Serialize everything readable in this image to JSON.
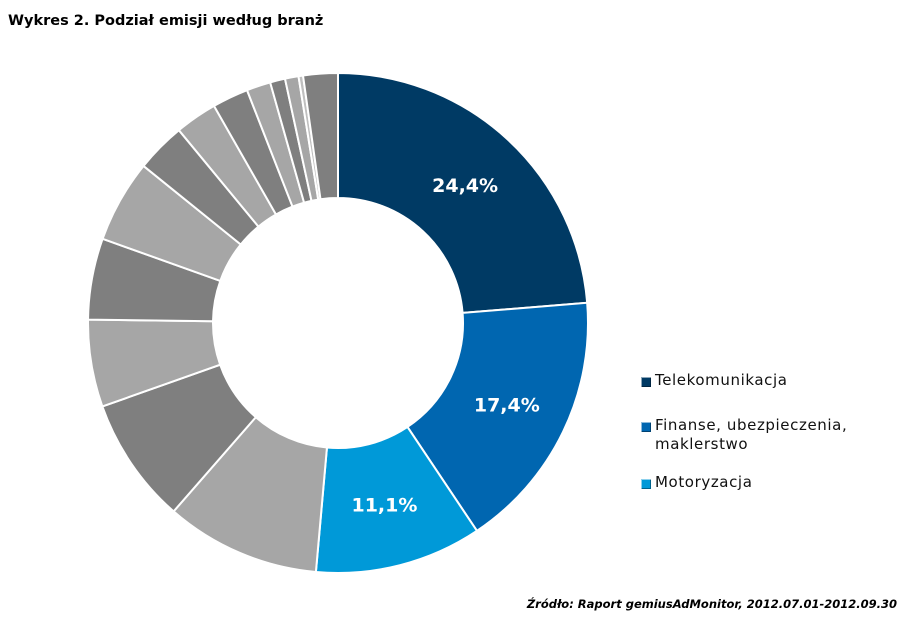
{
  "title": "Wykres 2. Podział emisji według branż",
  "source": "Źródło: Raport gemiusAdMonitor, 2012.07.01-2012.09.30",
  "legend": [
    {
      "label": "Telekomunikacja",
      "color": "#003a64"
    },
    {
      "label": "Finanse, ubezpieczenia, maklerstwo",
      "color": "#0066b0"
    },
    {
      "label": "Motoryzacja",
      "color": "#0099d8"
    }
  ],
  "chart_data": {
    "type": "donut",
    "title": "Wykres 2. Podział emisji według branż",
    "series": [
      {
        "name": "Telekomunikacja",
        "value": 24.4,
        "label": "24,4%",
        "color": "#003a64"
      },
      {
        "name": "Finanse, ubezpieczenia, maklerstwo",
        "value": 17.4,
        "label": "17,4%",
        "color": "#0066b0"
      },
      {
        "name": "Motoryzacja",
        "value": 11.1,
        "label": "11,1%",
        "color": "#0099d8"
      },
      {
        "name": "",
        "value": 10.3,
        "label": "",
        "color": "#a6a6a6"
      },
      {
        "name": "",
        "value": 8.4,
        "label": "",
        "color": "#7f7f7f"
      },
      {
        "name": "",
        "value": 5.8,
        "label": "",
        "color": "#a6a6a6"
      },
      {
        "name": "",
        "value": 5.4,
        "label": "",
        "color": "#7f7f7f"
      },
      {
        "name": "",
        "value": 5.5,
        "label": "",
        "color": "#a6a6a6"
      },
      {
        "name": "",
        "value": 3.3,
        "label": "",
        "color": "#7f7f7f"
      },
      {
        "name": "",
        "value": 2.8,
        "label": "",
        "color": "#a6a6a6"
      },
      {
        "name": "",
        "value": 2.4,
        "label": "",
        "color": "#7f7f7f"
      },
      {
        "name": "",
        "value": 1.6,
        "label": "",
        "color": "#a6a6a6"
      },
      {
        "name": "",
        "value": 1.0,
        "label": "",
        "color": "#7f7f7f"
      },
      {
        "name": "",
        "value": 0.9,
        "label": "",
        "color": "#a6a6a6"
      },
      {
        "name": "",
        "value": 0.3,
        "label": "",
        "color": "#bfbfbf"
      },
      {
        "name": "",
        "value": 2.3,
        "label": "",
        "color": "#7f7f7f"
      }
    ]
  }
}
